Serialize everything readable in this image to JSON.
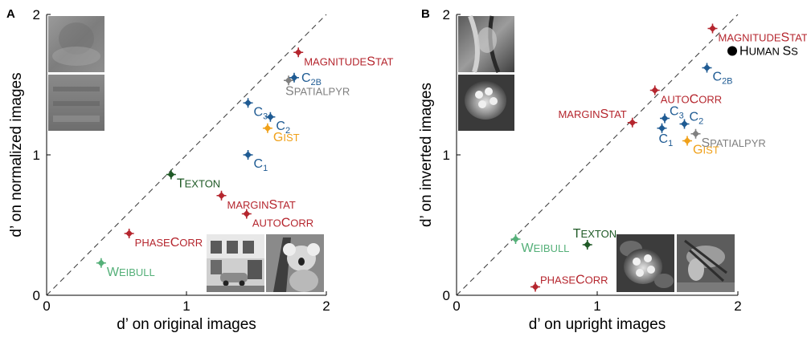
{
  "panel_letters": [
    "A",
    "B"
  ],
  "colors": {
    "red": "#b5262e",
    "blue": "#1f5b93",
    "gray": "#808080",
    "orange": "#f0a11a",
    "dkgreen": "#1f5a26",
    "ltgreen": "#55b079",
    "black": "#000000"
  },
  "chart_data": [
    {
      "type": "scatter",
      "panel": "A",
      "xlabel": "d’ on original images",
      "ylabel": "d’ on normalized images",
      "xlim": [
        0,
        2
      ],
      "ylim": [
        0,
        2
      ],
      "xticks": [
        "0",
        "1",
        "2"
      ],
      "yticks": [
        "0",
        "1",
        "2"
      ],
      "grid": false,
      "reference_line": "diagonal y = x (dashed)",
      "points": [
        {
          "name": "magnitudeStat",
          "label": [
            {
              "t": "MAGNITUDE",
              "c": "s"
            },
            {
              "t": "S",
              "c": "b"
            },
            {
              "t": "TAT",
              "c": "s"
            }
          ],
          "color": "red",
          "x": 1.8,
          "y": 1.73,
          "pos": "below-right"
        },
        {
          "name": "C2B",
          "label": [
            {
              "t": "C",
              "c": "b"
            },
            {
              "t": "2B",
              "c": "sub"
            }
          ],
          "color": "blue",
          "x": 1.77,
          "y": 1.55,
          "pos": "right"
        },
        {
          "name": "SpatialPyr",
          "label": [
            {
              "t": "S",
              "c": "b"
            },
            {
              "t": "PATIALPYR",
              "c": "s"
            }
          ],
          "color": "gray",
          "x": 1.73,
          "y": 1.53,
          "pos": "below"
        },
        {
          "name": "C3",
          "label": [
            {
              "t": "C",
              "c": "b"
            },
            {
              "t": "3",
              "c": "sub"
            }
          ],
          "color": "blue",
          "x": 1.44,
          "y": 1.37,
          "pos": "below-right"
        },
        {
          "name": "C2",
          "label": [
            {
              "t": "C",
              "c": "b"
            },
            {
              "t": "2",
              "c": "sub"
            }
          ],
          "color": "blue",
          "x": 1.6,
          "y": 1.27,
          "pos": "below-right"
        },
        {
          "name": "Gist",
          "label": [
            {
              "t": "G",
              "c": "b"
            },
            {
              "t": "IST",
              "c": "s"
            }
          ],
          "color": "orange",
          "x": 1.58,
          "y": 1.19,
          "pos": "below-right"
        },
        {
          "name": "C1",
          "label": [
            {
              "t": "C",
              "c": "b"
            },
            {
              "t": "1",
              "c": "sub"
            }
          ],
          "color": "blue",
          "x": 1.44,
          "y": 1.0,
          "pos": "below-right"
        },
        {
          "name": "Texton",
          "label": [
            {
              "t": "T",
              "c": "b"
            },
            {
              "t": "EXTON",
              "c": "s"
            }
          ],
          "color": "dkgreen",
          "x": 0.89,
          "y": 0.86,
          "pos": "below-right"
        },
        {
          "name": "marginStat",
          "label": [
            {
              "t": "MARGIN",
              "c": "s"
            },
            {
              "t": "S",
              "c": "b"
            },
            {
              "t": "TAT",
              "c": "s"
            }
          ],
          "color": "red",
          "x": 1.25,
          "y": 0.71,
          "pos": "below-right"
        },
        {
          "name": "autoCorr",
          "label": [
            {
              "t": "AUTO",
              "c": "s"
            },
            {
              "t": "C",
              "c": "b"
            },
            {
              "t": "ORR",
              "c": "s"
            }
          ],
          "color": "red",
          "x": 1.43,
          "y": 0.58,
          "pos": "below-right"
        },
        {
          "name": "phaseCorr",
          "label": [
            {
              "t": "PHASE",
              "c": "s"
            },
            {
              "t": "C",
              "c": "b"
            },
            {
              "t": "ORR",
              "c": "s"
            }
          ],
          "color": "red",
          "x": 0.59,
          "y": 0.44,
          "pos": "below-right"
        },
        {
          "name": "Weibull",
          "label": [
            {
              "t": "W",
              "c": "b"
            },
            {
              "t": "EIBULL",
              "c": "s"
            }
          ],
          "color": "ltgreen",
          "x": 0.39,
          "y": 0.23,
          "pos": "below-right"
        }
      ]
    },
    {
      "type": "scatter",
      "panel": "B",
      "xlabel": "d’ on upright images",
      "ylabel": "d’ on inverted images",
      "xlim": [
        0,
        2
      ],
      "ylim": [
        0,
        2
      ],
      "xticks": [
        "0",
        "1",
        "2"
      ],
      "yticks": [
        "0",
        "1",
        "2"
      ],
      "grid": false,
      "reference_line": "diagonal y = x (dashed)",
      "points": [
        {
          "name": "magnitudeStat",
          "label": [
            {
              "t": "MAGNITUDE",
              "c": "s"
            },
            {
              "t": "S",
              "c": "b"
            },
            {
              "t": "TAT",
              "c": "s"
            }
          ],
          "color": "red",
          "x": 1.82,
          "y": 1.9,
          "pos": "below-right"
        },
        {
          "name": "Human Ss",
          "label": [
            {
              "t": "H",
              "c": "b"
            },
            {
              "t": "UMAN ",
              "c": "s"
            },
            {
              "t": "S",
              "c": "b"
            },
            {
              "t": "S",
              "c": "s"
            }
          ],
          "color": "black",
          "x": 1.96,
          "y": 1.74,
          "pos": "right",
          "marker": "circle"
        },
        {
          "name": "C2B",
          "label": [
            {
              "t": "C",
              "c": "b"
            },
            {
              "t": "2B",
              "c": "sub"
            }
          ],
          "color": "blue",
          "x": 1.78,
          "y": 1.62,
          "pos": "below-right"
        },
        {
          "name": "autoCorr",
          "label": [
            {
              "t": "AUTO",
              "c": "s"
            },
            {
              "t": "C",
              "c": "b"
            },
            {
              "t": "ORR",
              "c": "s"
            }
          ],
          "color": "red",
          "x": 1.41,
          "y": 1.46,
          "pos": "below-right"
        },
        {
          "name": "marginStat",
          "label": [
            {
              "t": "MARGIN",
              "c": "s"
            },
            {
              "t": "S",
              "c": "b"
            },
            {
              "t": "TAT",
              "c": "s"
            }
          ],
          "color": "red",
          "x": 1.25,
          "y": 1.23,
          "pos": "above-left"
        },
        {
          "name": "C3",
          "label": [
            {
              "t": "C",
              "c": "b"
            },
            {
              "t": "3",
              "c": "sub"
            }
          ],
          "color": "blue",
          "x": 1.48,
          "y": 1.26,
          "pos": "above-right"
        },
        {
          "name": "C2",
          "label": [
            {
              "t": "C",
              "c": "b"
            },
            {
              "t": "2",
              "c": "sub"
            }
          ],
          "color": "blue",
          "x": 1.62,
          "y": 1.22,
          "pos": "above-right"
        },
        {
          "name": "C1",
          "label": [
            {
              "t": "C",
              "c": "b"
            },
            {
              "t": "1",
              "c": "sub"
            }
          ],
          "color": "blue",
          "x": 1.46,
          "y": 1.19,
          "pos": "below"
        },
        {
          "name": "SpatialPyr",
          "label": [
            {
              "t": "S",
              "c": "b"
            },
            {
              "t": "PATIALPYR",
              "c": "s"
            }
          ],
          "color": "gray",
          "x": 1.7,
          "y": 1.15,
          "pos": "below-right"
        },
        {
          "name": "Gist",
          "label": [
            {
              "t": "G",
              "c": "b"
            },
            {
              "t": "IST",
              "c": "s"
            }
          ],
          "color": "orange",
          "x": 1.64,
          "y": 1.1,
          "pos": "below-right"
        },
        {
          "name": "Texton",
          "label": [
            {
              "t": "T",
              "c": "b"
            },
            {
              "t": "EXTON",
              "c": "s"
            }
          ],
          "color": "dkgreen",
          "x": 0.93,
          "y": 0.36,
          "pos": "above"
        },
        {
          "name": "Weibull",
          "label": [
            {
              "t": "W",
              "c": "b"
            },
            {
              "t": "EIBULL",
              "c": "s"
            }
          ],
          "color": "ltgreen",
          "x": 0.42,
          "y": 0.4,
          "pos": "below-right"
        },
        {
          "name": "phaseCorr",
          "label": [
            {
              "t": "PHASE",
              "c": "s"
            },
            {
              "t": "C",
              "c": "b"
            },
            {
              "t": "ORR",
              "c": "s"
            }
          ],
          "color": "red",
          "x": 0.56,
          "y": 0.06,
          "pos": "above-right"
        }
      ]
    }
  ],
  "thumbnails": {
    "A": [
      "scrambled-gray-thumb",
      "scrambled-gray-thumb-2",
      "street-building-photo",
      "koala-photo"
    ],
    "B": [
      "inverted-tiger-photo",
      "flowers-photo",
      "flowers-photo-upright",
      "tiger-photo-upright"
    ]
  }
}
